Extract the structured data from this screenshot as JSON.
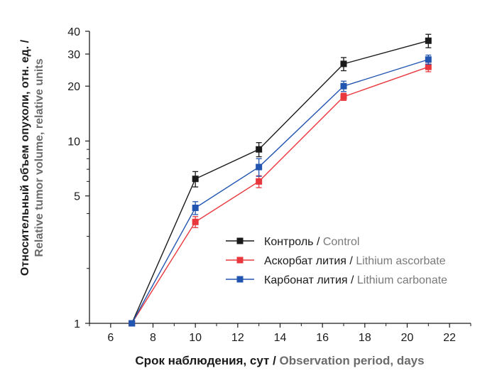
{
  "chart_data": {
    "type": "line",
    "x_label": {
      "ru": "Срок наблюдения, сут / ",
      "en": "Observation period, days"
    },
    "y_label": {
      "ru": "Относительный объем опухоли, отн. ед. /",
      "en": "Relative tumor volume, relative units"
    },
    "x_range": [
      5,
      23
    ],
    "x_ticks": [
      6,
      8,
      10,
      12,
      14,
      16,
      18,
      20,
      22
    ],
    "y_scale": "log",
    "y_range": [
      1,
      40
    ],
    "y_ticks": [
      1,
      5,
      10,
      20,
      30,
      40
    ],
    "grid": false,
    "legend_position": "lower-right",
    "series": [
      {
        "name_ru": "Контроль / ",
        "name_en": "Control",
        "color": "#1a1a1a",
        "x": [
          7,
          10,
          13,
          17,
          21
        ],
        "y": [
          1,
          6.2,
          9.0,
          26.5,
          35.5
        ],
        "err": [
          0,
          0.6,
          0.8,
          2.2,
          3.0
        ]
      },
      {
        "name_ru": "Аскорбат лития / ",
        "name_en": "Lithium ascorbate",
        "color": "#e8383d",
        "x": [
          7,
          10,
          13,
          17,
          21
        ],
        "y": [
          1,
          3.6,
          6.0,
          17.5,
          25.5
        ],
        "err": [
          0,
          0.25,
          0.45,
          0.8,
          1.5
        ]
      },
      {
        "name_ru": "Карбонат лития / ",
        "name_en": "Lithium carbonate",
        "color": "#2255b0",
        "x": [
          7,
          10,
          13,
          17,
          21
        ],
        "y": [
          1,
          4.3,
          7.2,
          20.0,
          28.0
        ],
        "err": [
          0,
          0.35,
          0.8,
          1.3,
          1.6
        ]
      }
    ]
  }
}
